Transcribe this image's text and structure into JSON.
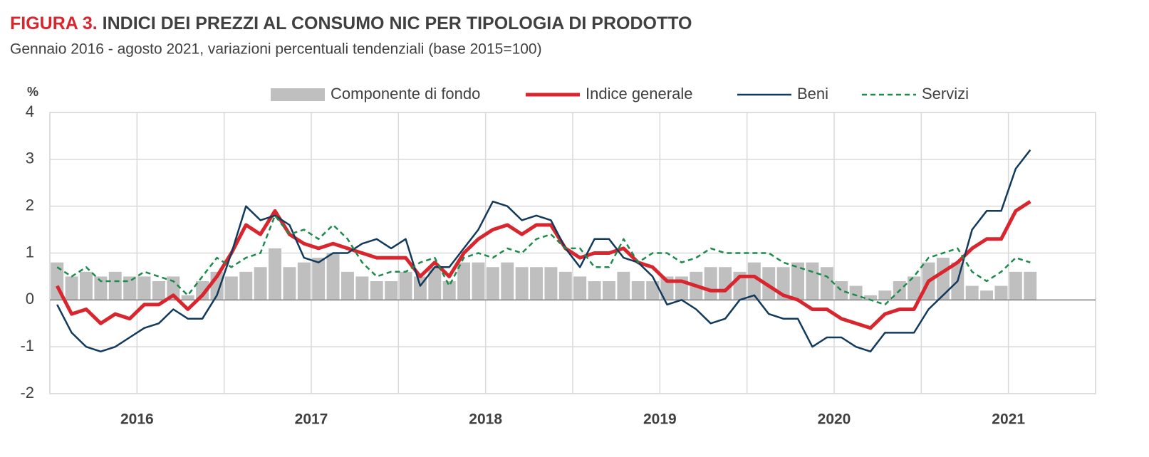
{
  "chart_data": {
    "type": "bar_line",
    "title_label": "FIGURA 3.",
    "title": "INDICI DEI PREZZI AL CONSUMO NIC PER TIPOLOGIA DI PRODOTTO",
    "subtitle": "Gennaio 2016 - agosto 2021, variazioni percentuali tendenziali (base 2015=100)",
    "y_unit": "%",
    "years": [
      "2016",
      "2017",
      "2018",
      "2019",
      "2020",
      "2021"
    ],
    "categories": [
      null,
      null,
      null,
      null,
      null,
      null,
      null,
      null,
      null,
      null,
      null,
      null,
      null,
      null,
      null,
      null,
      null,
      null,
      null,
      null,
      null,
      null,
      null,
      null,
      null,
      null,
      null,
      null,
      null,
      null,
      null,
      null,
      null,
      null,
      null,
      null,
      null,
      null,
      null,
      null,
      null,
      null,
      null,
      null,
      null,
      null,
      null,
      null,
      null,
      null,
      null,
      null,
      null,
      null,
      null,
      null,
      null,
      null,
      null,
      null,
      null,
      null,
      null,
      null,
      null,
      null,
      null,
      null,
      null,
      null,
      null,
      null
    ],
    "ylim": [
      -2,
      4
    ],
    "yticks": [
      -2,
      -1,
      0,
      1,
      2,
      3,
      4
    ],
    "grid": true,
    "series": [
      {
        "name": "Componente di fondo",
        "kind": "bar",
        "color": "#bfbfbf",
        "values": [
          0.8,
          0.5,
          0.6,
          0.5,
          0.6,
          0.5,
          0.5,
          0.4,
          0.5,
          0.1,
          0.4,
          0.6,
          0.5,
          0.6,
          0.7,
          1.1,
          0.7,
          0.8,
          0.9,
          1.0,
          0.6,
          0.5,
          0.4,
          0.4,
          0.6,
          0.5,
          0.7,
          0.4,
          0.8,
          0.8,
          0.7,
          0.8,
          0.7,
          0.7,
          0.7,
          0.6,
          0.5,
          0.4,
          0.4,
          0.6,
          0.4,
          0.4,
          0.5,
          0.5,
          0.6,
          0.7,
          0.7,
          0.6,
          0.8,
          0.7,
          0.7,
          0.8,
          0.8,
          0.7,
          0.4,
          0.3,
          0.1,
          0.2,
          0.4,
          0.5,
          0.8,
          0.9,
          0.8,
          0.3,
          0.2,
          0.3,
          0.6,
          0.6,
          null,
          null,
          null,
          null
        ]
      },
      {
        "name": "Indice generale",
        "kind": "line",
        "color": "#d9262e",
        "width": 5,
        "values": [
          0.3,
          -0.3,
          -0.2,
          -0.5,
          -0.3,
          -0.4,
          -0.1,
          -0.1,
          0.1,
          -0.2,
          0.1,
          0.5,
          1.0,
          1.6,
          1.4,
          1.9,
          1.4,
          1.2,
          1.1,
          1.2,
          1.1,
          1.0,
          0.9,
          0.9,
          0.9,
          0.5,
          0.8,
          0.5,
          1.0,
          1.3,
          1.5,
          1.6,
          1.4,
          1.6,
          1.6,
          1.1,
          0.9,
          1.0,
          1.0,
          1.1,
          0.8,
          0.7,
          0.4,
          0.4,
          0.3,
          0.2,
          0.2,
          0.5,
          0.5,
          0.3,
          0.1,
          0.0,
          -0.2,
          -0.2,
          -0.4,
          -0.5,
          -0.6,
          -0.3,
          -0.2,
          -0.2,
          0.4,
          0.6,
          0.8,
          1.1,
          1.3,
          1.3,
          1.9,
          2.1,
          null,
          null,
          null,
          null
        ]
      },
      {
        "name": "Beni",
        "kind": "line",
        "color": "#123a5c",
        "width": 2.5,
        "values": [
          -0.1,
          -0.7,
          -1.0,
          -1.1,
          -1.0,
          -0.8,
          -0.6,
          -0.5,
          -0.2,
          -0.4,
          -0.4,
          0.1,
          1.0,
          2.0,
          1.7,
          1.8,
          1.6,
          0.9,
          0.8,
          1.0,
          1.0,
          1.2,
          1.3,
          1.1,
          1.3,
          0.3,
          0.7,
          0.7,
          1.1,
          1.5,
          2.1,
          2.0,
          1.7,
          1.8,
          1.7,
          1.1,
          0.7,
          1.3,
          1.3,
          0.9,
          0.8,
          0.5,
          -0.1,
          0.0,
          -0.2,
          -0.5,
          -0.4,
          0.0,
          0.1,
          -0.3,
          -0.4,
          -0.4,
          -1.0,
          -0.8,
          -0.8,
          -1.0,
          -1.1,
          -0.7,
          -0.7,
          -0.7,
          -0.2,
          0.1,
          0.4,
          1.5,
          1.9,
          1.9,
          2.8,
          3.2,
          null,
          null,
          null,
          null
        ]
      },
      {
        "name": "Servizi",
        "kind": "line",
        "color": "#1e8a4c",
        "width": 2.5,
        "dashed": true,
        "values": [
          0.7,
          0.5,
          0.7,
          0.4,
          0.4,
          0.4,
          0.6,
          0.5,
          0.4,
          0.1,
          0.5,
          0.9,
          0.7,
          0.9,
          1.0,
          1.8,
          1.4,
          1.5,
          1.3,
          1.6,
          1.3,
          0.8,
          0.5,
          0.6,
          0.6,
          0.8,
          0.9,
          0.3,
          0.9,
          1.0,
          0.9,
          1.1,
          1.0,
          1.3,
          1.4,
          1.1,
          1.1,
          0.7,
          0.7,
          1.3,
          0.8,
          1.0,
          1.0,
          0.8,
          0.9,
          1.1,
          1.0,
          1.0,
          1.0,
          1.0,
          0.8,
          0.7,
          0.6,
          0.5,
          0.2,
          0.1,
          0.0,
          -0.1,
          0.2,
          0.5,
          0.9,
          1.0,
          1.1,
          0.6,
          0.4,
          0.6,
          0.9,
          0.8,
          null,
          null,
          null,
          null
        ]
      }
    ]
  }
}
